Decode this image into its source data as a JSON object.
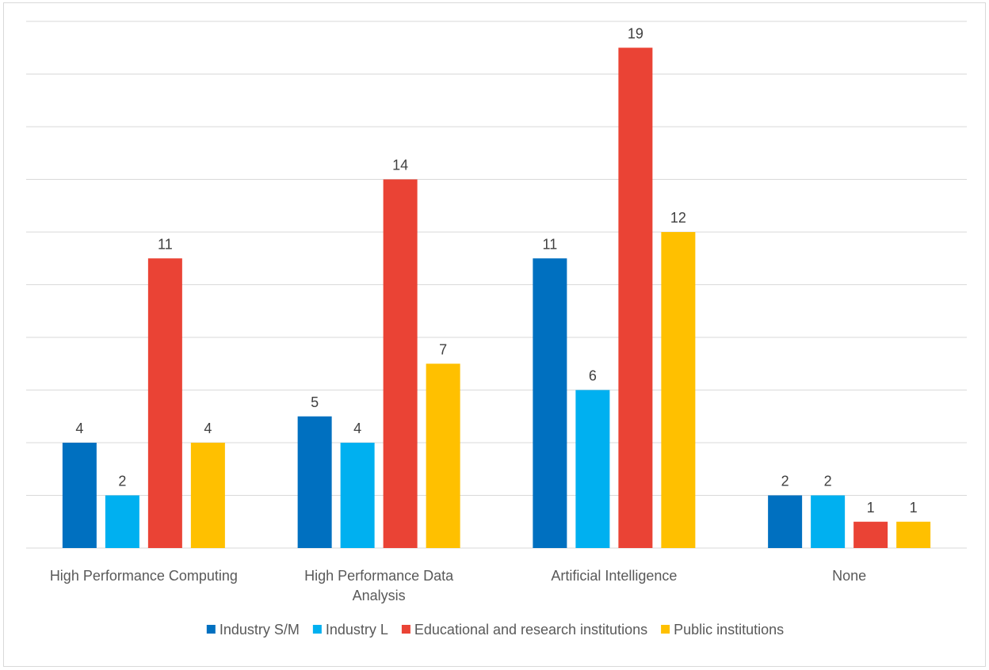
{
  "chart_data": {
    "type": "bar",
    "categories": [
      [
        "High Performance Computing"
      ],
      [
        "High Performance Data",
        "Analysis"
      ],
      [
        "Artificial Intelligence"
      ],
      [
        "None"
      ]
    ],
    "series": [
      {
        "name": "Industry S/M",
        "color": "#0070C0",
        "values": [
          4,
          5,
          11,
          2
        ]
      },
      {
        "name": "Industry L",
        "color": "#00B0F0",
        "values": [
          2,
          4,
          6,
          2
        ]
      },
      {
        "name": "Educational and research institutions",
        "color": "#EA4335",
        "values": [
          11,
          14,
          19,
          1
        ]
      },
      {
        "name": "Public institutions",
        "color": "#FFC000",
        "values": [
          4,
          7,
          12,
          1
        ]
      }
    ],
    "ylim": [
      0,
      20
    ],
    "gridlines": true,
    "grid_step": 2,
    "legend_position": "bottom",
    "data_labels": true
  }
}
